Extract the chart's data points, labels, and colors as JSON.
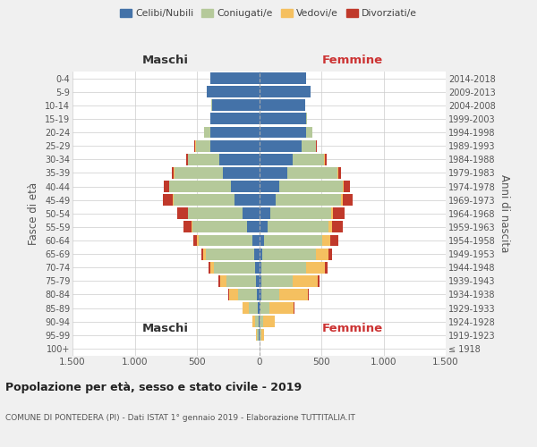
{
  "age_groups": [
    "100+",
    "95-99",
    "90-94",
    "85-89",
    "80-84",
    "75-79",
    "70-74",
    "65-69",
    "60-64",
    "55-59",
    "50-54",
    "45-49",
    "40-44",
    "35-39",
    "30-34",
    "25-29",
    "20-24",
    "15-19",
    "10-14",
    "5-9",
    "0-4"
  ],
  "birth_years": [
    "≤ 1918",
    "1919-1923",
    "1924-1928",
    "1929-1933",
    "1934-1938",
    "1939-1943",
    "1944-1948",
    "1949-1953",
    "1954-1958",
    "1959-1963",
    "1964-1968",
    "1969-1973",
    "1974-1978",
    "1979-1983",
    "1984-1988",
    "1989-1993",
    "1994-1998",
    "1999-2003",
    "2004-2008",
    "2009-2013",
    "2014-2018"
  ],
  "maschi": {
    "celibi": [
      0,
      5,
      5,
      10,
      20,
      25,
      35,
      40,
      55,
      95,
      130,
      200,
      230,
      290,
      320,
      390,
      390,
      390,
      380,
      420,
      390
    ],
    "coniugati": [
      0,
      15,
      30,
      70,
      150,
      240,
      330,
      390,
      430,
      440,
      440,
      490,
      490,
      390,
      250,
      120,
      50,
      5,
      2,
      0,
      0
    ],
    "vedovi": [
      0,
      5,
      20,
      50,
      70,
      50,
      25,
      20,
      15,
      10,
      5,
      5,
      5,
      5,
      5,
      5,
      5,
      0,
      0,
      0,
      0
    ],
    "divorziati": [
      0,
      0,
      2,
      5,
      5,
      10,
      15,
      15,
      30,
      60,
      80,
      80,
      40,
      20,
      10,
      5,
      0,
      0,
      0,
      0,
      0
    ]
  },
  "femmine": {
    "nubili": [
      0,
      5,
      5,
      10,
      15,
      20,
      20,
      25,
      40,
      65,
      90,
      130,
      165,
      230,
      270,
      340,
      380,
      380,
      370,
      415,
      380
    ],
    "coniugate": [
      0,
      10,
      30,
      70,
      145,
      250,
      360,
      430,
      470,
      490,
      490,
      530,
      510,
      400,
      255,
      115,
      45,
      5,
      2,
      0,
      0
    ],
    "vedove": [
      0,
      25,
      90,
      200,
      230,
      200,
      150,
      100,
      60,
      30,
      15,
      10,
      5,
      5,
      5,
      5,
      5,
      0,
      0,
      0,
      0
    ],
    "divorziate": [
      0,
      0,
      2,
      5,
      10,
      15,
      20,
      30,
      70,
      90,
      90,
      80,
      50,
      25,
      10,
      5,
      0,
      0,
      0,
      0,
      0
    ]
  },
  "colors": {
    "celibi": "#4472a8",
    "coniugati": "#b5c99a",
    "vedovi": "#f5c060",
    "divorziati": "#c0392b"
  },
  "title": "Popolazione per età, sesso e stato civile - 2019",
  "subtitle": "COMUNE DI PONTEDERA (PI) - Dati ISTAT 1° gennaio 2019 - Elaborazione TUTTITALIA.IT",
  "xlabel_maschi": "Maschi",
  "xlabel_femmine": "Femmine",
  "ylabel_left": "Fasce di età",
  "ylabel_right": "Anni di nascita",
  "xlim": 1500,
  "bg_color": "#f0f0f0",
  "plot_bg": "#ffffff"
}
